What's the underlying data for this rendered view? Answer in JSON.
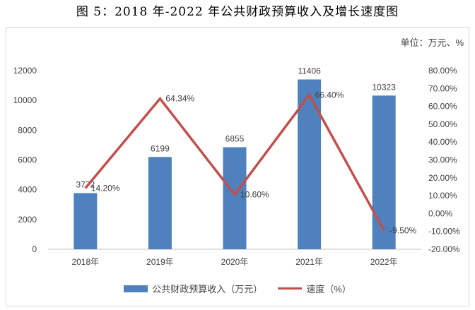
{
  "title": "图 5：2018 年-2022 年公共财政预算收入及增长速度图",
  "unit_label": "单位：万元、%",
  "chart_data": {
    "type": "bar",
    "categories": [
      "2018年",
      "2019年",
      "2020年",
      "2021年",
      "2022年"
    ],
    "series": [
      {
        "name": "公共财政预算收入（万元）",
        "type": "bar",
        "axis": "left",
        "values": [
          3772,
          6199,
          6855,
          11406,
          10323
        ],
        "labels": [
          "3772",
          "6199",
          "6855",
          "11406",
          "10323"
        ],
        "color": "#4e81bd"
      },
      {
        "name": "速度（%）",
        "type": "line",
        "axis": "right",
        "values": [
          14.2,
          64.34,
          10.6,
          66.4,
          -9.5
        ],
        "labels": [
          "14.20%",
          "64.34%",
          "10.60%",
          "66.40%",
          "-9.50%"
        ],
        "color": "#c0504d"
      }
    ],
    "y_left": {
      "min": 0,
      "max": 12000,
      "ticks": [
        "0",
        "2000",
        "4000",
        "6000",
        "8000",
        "10000",
        "12000"
      ]
    },
    "y_right": {
      "min": -20,
      "max": 80,
      "ticks": [
        "-20.00%",
        "-10.00%",
        "0.00%",
        "10.00%",
        "20.00%",
        "30.00%",
        "40.00%",
        "50.00%",
        "60.00%",
        "70.00%",
        "80.00%"
      ]
    },
    "grid": false,
    "legend_position": "bottom"
  }
}
